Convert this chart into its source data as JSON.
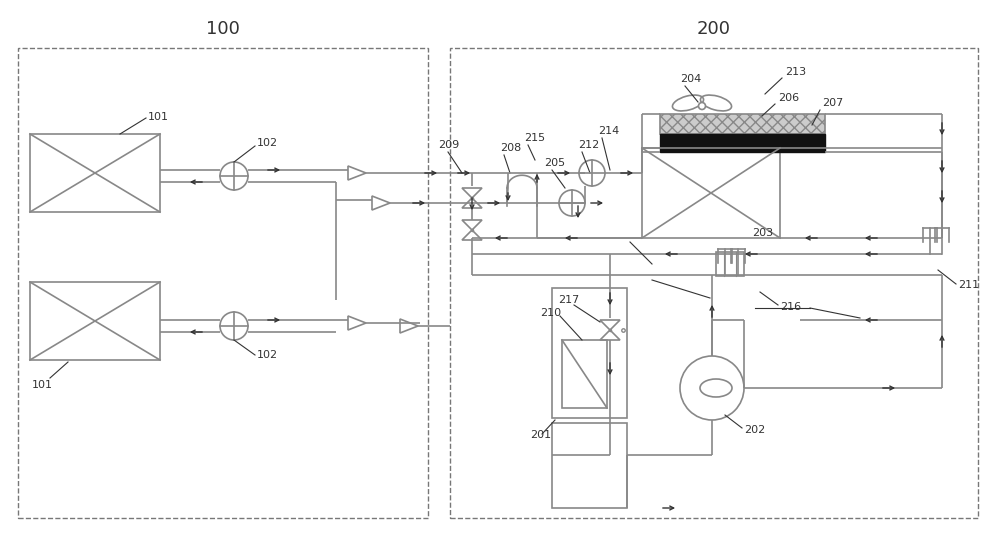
{
  "bg": "#ffffff",
  "lc": "#888888",
  "dc": "#333333",
  "bc": "#000000",
  "fig_w": 10.0,
  "fig_h": 5.6,
  "xlim": [
    0,
    10
  ],
  "ylim": [
    0,
    5.6
  ]
}
